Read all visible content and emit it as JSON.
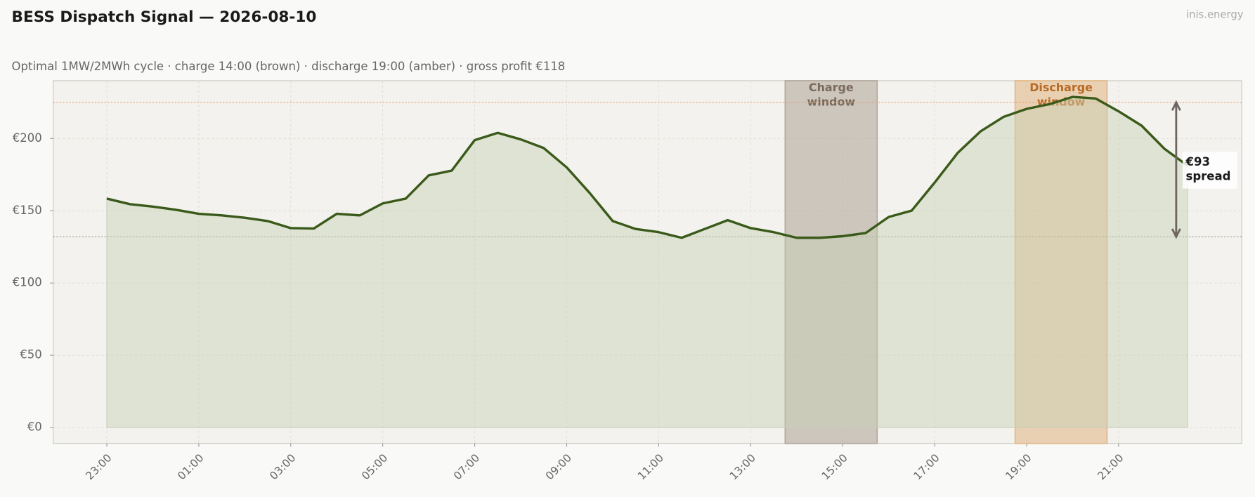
{
  "chart_data": {
    "type": "line",
    "title": "BESS Dispatch Signal — 2026-08-10",
    "subtitle": "Optimal 1MW/2MWh cycle  ·  charge 14:00 (brown)  ·  discharge 19:00 (amber)  ·  gross profit €118",
    "watermark": "inis.energy",
    "categories": [
      "23:00",
      null,
      null,
      null,
      "01:00",
      null,
      null,
      null,
      "03:00",
      null,
      null,
      null,
      "05:00",
      null,
      null,
      null,
      "07:00",
      null,
      null,
      null,
      "09:00",
      null,
      null,
      null,
      "11:00",
      null,
      null,
      null,
      "13:00",
      null,
      null,
      null,
      "15:00",
      null,
      null,
      null,
      "17:00",
      null,
      null,
      null,
      "19:00",
      null,
      null,
      null,
      "21:00",
      null,
      null,
      null
    ],
    "values": [
      158.4,
      154.6,
      152.9,
      150.7,
      147.9,
      146.8,
      145.2,
      142.9,
      138,
      137.7,
      147.9,
      146.8,
      155.1,
      158.4,
      174.5,
      177.8,
      198.9,
      203.9,
      199.4,
      193.4,
      180,
      162.3,
      142.9,
      137.4,
      135.2,
      131.3,
      137.4,
      143.5,
      138,
      135.2,
      131.3,
      131.3,
      132.4,
      134.6,
      145.7,
      150.1,
      169.5,
      190,
      205,
      215,
      220.5,
      223.8,
      228.8,
      227.7,
      218.8,
      208.9,
      192.8,
      181.2
    ],
    "color": "#3a5a1a",
    "ylim": [
      -11,
      240
    ],
    "yticks": [
      {
        "value": 0,
        "label": "€0"
      },
      {
        "value": 50,
        "label": "€50"
      },
      {
        "value": 100,
        "label": "€100"
      },
      {
        "value": 150,
        "label": "€150"
      },
      {
        "value": 200,
        "label": "€200"
      }
    ],
    "grid": true,
    "windows": [
      {
        "label": [
          "Charge",
          "window"
        ],
        "span": [
          29.5,
          33.5
        ],
        "color": "#b3a89c",
        "text_color": "#7a6a5a"
      },
      {
        "label": [
          "Discharge",
          "window"
        ],
        "span": [
          39.5,
          43.5
        ],
        "color": "#e2b98a",
        "text_color": "#b86a25"
      }
    ],
    "reference_lines": [
      {
        "value": 225,
        "color": "#e8a070"
      },
      {
        "value": 132,
        "color": "#9a9a8a"
      }
    ],
    "spread": {
      "label": [
        "€93",
        "spread"
      ],
      "low": 132,
      "high": 225
    }
  }
}
